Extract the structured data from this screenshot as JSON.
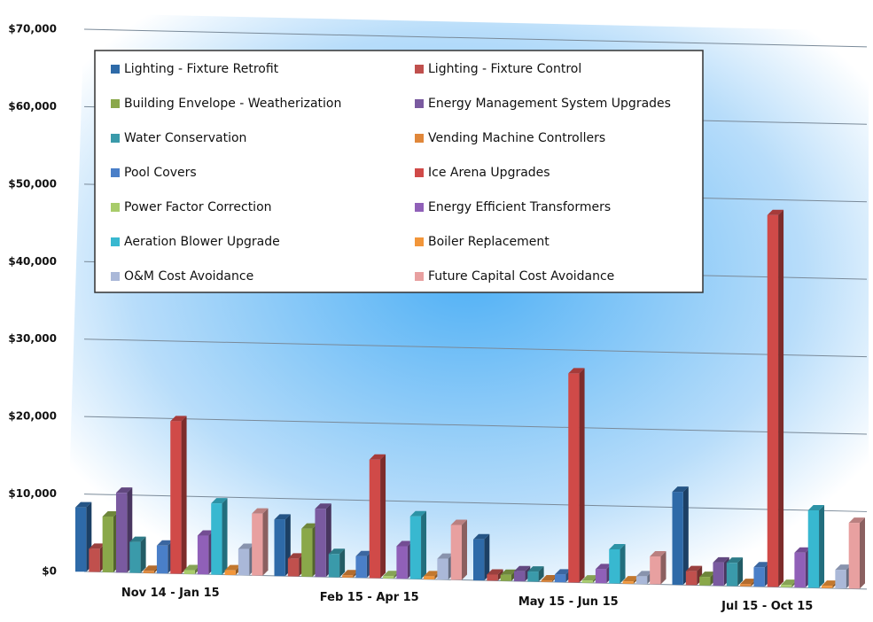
{
  "chart_data": {
    "type": "bar3d",
    "categories": [
      "Nov 14 - Jan 15",
      "Feb 15 - Apr 15",
      "May 15 - Jun 15",
      "Jul 15 - Oct 15"
    ],
    "series": [
      {
        "name": "Lighting - Fixture Retrofit",
        "color": "#2e6aa8",
        "values": [
          8300,
          7300,
          5300,
          12000
        ]
      },
      {
        "name": "Lighting - Fixture Control",
        "color": "#c0504d",
        "values": [
          3000,
          2300,
          800,
          1800
        ]
      },
      {
        "name": "Building Envelope - Weatherization",
        "color": "#8aa84a",
        "values": [
          7200,
          6200,
          800,
          1100
        ]
      },
      {
        "name": "Energy Management System Upgrades",
        "color": "#7a5aa0",
        "values": [
          10300,
          8800,
          1300,
          3000
        ]
      },
      {
        "name": "Water Conservation",
        "color": "#3a9aaa",
        "values": [
          4000,
          3000,
          1300,
          3000
        ]
      },
      {
        "name": "Vending Machine Controllers",
        "color": "#e0873a",
        "values": [
          300,
          300,
          200,
          300
        ]
      },
      {
        "name": "Pool Covers",
        "color": "#4a7fc8",
        "values": [
          3600,
          2800,
          1000,
          2500
        ]
      },
      {
        "name": "Ice Arena Upgrades",
        "color": "#d04a48",
        "values": [
          19700,
          15300,
          27000,
          48000
        ]
      },
      {
        "name": "Power Factor Correction",
        "color": "#a8cc6a",
        "values": [
          500,
          300,
          300,
          300
        ]
      },
      {
        "name": "Energy Efficient Transformers",
        "color": "#9060b8",
        "values": [
          5000,
          4200,
          1800,
          4500
        ]
      },
      {
        "name": "Aeration Blower Upgrade",
        "color": "#38b8d0",
        "values": [
          9200,
          8100,
          4400,
          10000
        ]
      },
      {
        "name": "Boiler Replacement",
        "color": "#f2963a",
        "values": [
          600,
          400,
          300,
          300
        ]
      },
      {
        "name": "O&M Cost Avoidance",
        "color": "#aab8d8",
        "values": [
          3400,
          2700,
          1000,
          2400
        ]
      },
      {
        "name": "Future Capital Cost Avoidance",
        "color": "#e8a0a0",
        "values": [
          8000,
          7100,
          3600,
          8500
        ]
      }
    ],
    "ylim": [
      0,
      70000
    ],
    "yticks": [
      {
        "value": 0,
        "label": "$0"
      },
      {
        "value": 10000,
        "label": "$10,000"
      },
      {
        "value": 20000,
        "label": "$20,000"
      },
      {
        "value": 30000,
        "label": "$30,000"
      },
      {
        "value": 40000,
        "label": "$40,000"
      },
      {
        "value": 50000,
        "label": "$50,000"
      },
      {
        "value": 60000,
        "label": "$60,000"
      },
      {
        "value": 70000,
        "label": "$70,000"
      }
    ],
    "grid": true,
    "legend": "top-left"
  }
}
